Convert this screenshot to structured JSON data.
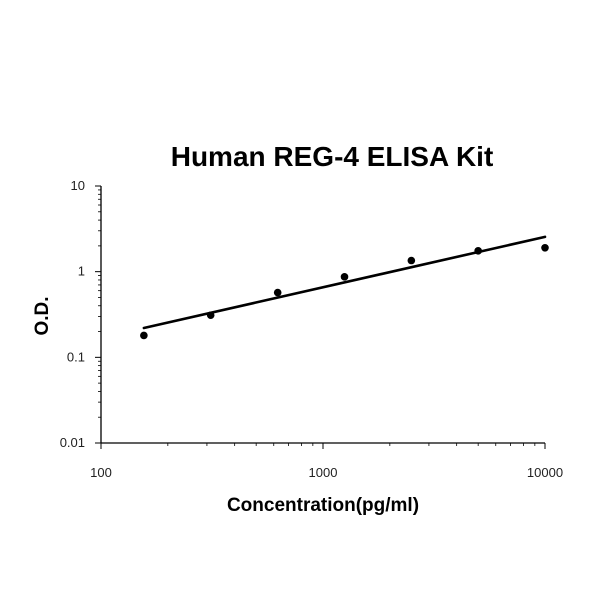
{
  "chart_data": {
    "type": "scatter",
    "title": "Human REG-4 ELISA Kit",
    "xlabel": "Concentration(pg/ml)",
    "ylabel": "O.D.",
    "xscale": "log",
    "yscale": "log",
    "xlim": [
      100,
      10000
    ],
    "ylim": [
      0.01,
      10
    ],
    "x_ticks": [
      "100",
      "1000",
      "10000"
    ],
    "y_ticks": [
      "0.01",
      "0.1",
      "1",
      "10"
    ],
    "grid": false,
    "legend": "none",
    "series": [
      {
        "points": [
          {
            "x": 156,
            "y": 0.18
          },
          {
            "x": 312,
            "y": 0.31
          },
          {
            "x": 625,
            "y": 0.57
          },
          {
            "x": 1250,
            "y": 0.87
          },
          {
            "x": 2500,
            "y": 1.35
          },
          {
            "x": 5000,
            "y": 1.75
          },
          {
            "x": 10000,
            "y": 1.9
          }
        ],
        "color": "#000000"
      }
    ],
    "trendline": {
      "type": "power",
      "start": {
        "x": 156,
        "y": 0.22
      },
      "end": {
        "x": 10000,
        "y": 2.55
      },
      "color": "#000000"
    }
  }
}
